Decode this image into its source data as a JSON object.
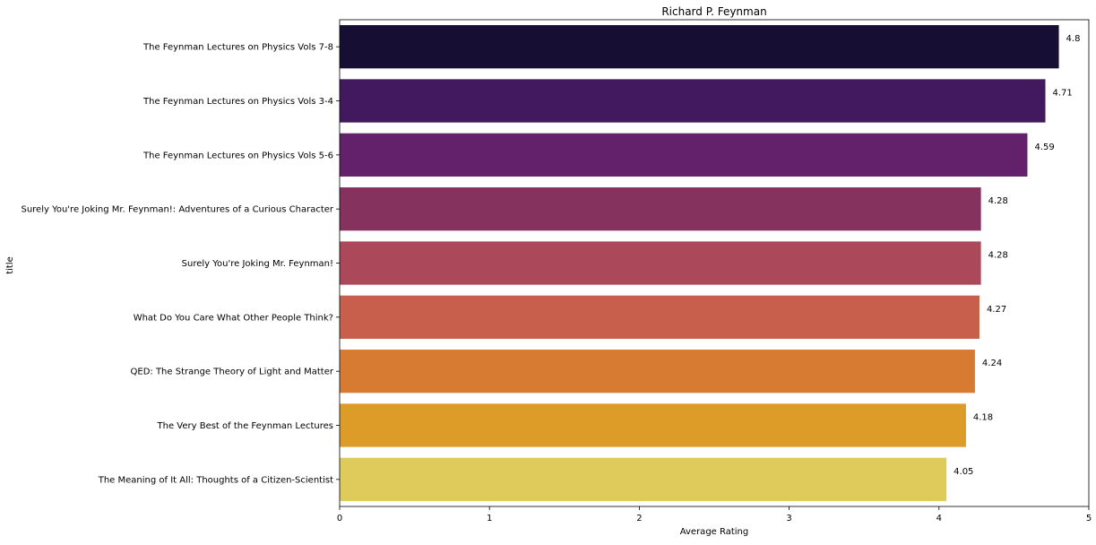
{
  "chart_data": {
    "type": "bar",
    "orientation": "horizontal",
    "title": "Richard P. Feynman",
    "xlabel": "Average Rating",
    "ylabel": "title",
    "xlim": [
      0,
      5
    ],
    "xticks": [
      0,
      1,
      2,
      3,
      4,
      5
    ],
    "grid": false,
    "categories": [
      "The Feynman Lectures on Physics Vols 7-8",
      "The Feynman Lectures on Physics Vols 3-4",
      "The Feynman Lectures on Physics Vols 5-6",
      "Surely You're Joking  Mr. Feynman!: Adventures of a Curious Character",
      "Surely You're Joking  Mr. Feynman!",
      "What Do You Care What Other People Think?",
      "QED: The Strange Theory of Light and Matter",
      "The Very Best of the Feynman Lectures",
      "The Meaning of It All: Thoughts of a Citizen-Scientist"
    ],
    "values": [
      4.8,
      4.71,
      4.59,
      4.28,
      4.28,
      4.27,
      4.24,
      4.18,
      4.05
    ],
    "value_labels": [
      "4.8",
      "4.71",
      "4.59",
      "4.28",
      "4.28",
      "4.27",
      "4.24",
      "4.18",
      "4.05"
    ],
    "colors": [
      "#170f33",
      "#42185e",
      "#62216a",
      "#86325f",
      "#ab495a",
      "#c75f4c",
      "#d77b33",
      "#dd9c28",
      "#decb5c"
    ]
  }
}
